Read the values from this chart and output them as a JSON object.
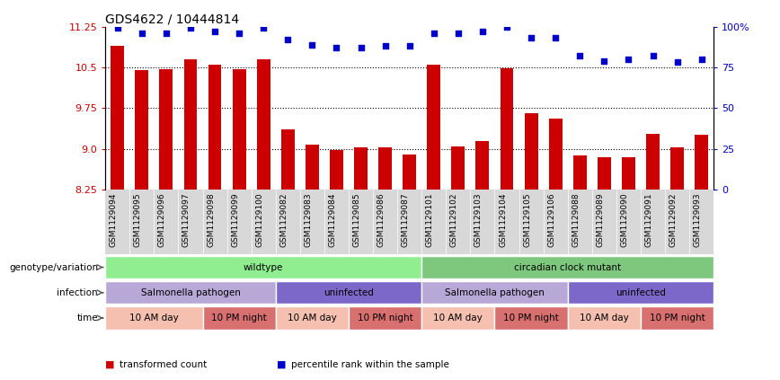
{
  "title": "GDS4622 / 10444814",
  "samples": [
    "GSM1129094",
    "GSM1129095",
    "GSM1129096",
    "GSM1129097",
    "GSM1129098",
    "GSM1129099",
    "GSM1129100",
    "GSM1129082",
    "GSM1129083",
    "GSM1129084",
    "GSM1129085",
    "GSM1129086",
    "GSM1129087",
    "GSM1129101",
    "GSM1129102",
    "GSM1129103",
    "GSM1129104",
    "GSM1129105",
    "GSM1129106",
    "GSM1129088",
    "GSM1129089",
    "GSM1129090",
    "GSM1129091",
    "GSM1129092",
    "GSM1129093"
  ],
  "bar_values": [
    10.9,
    10.45,
    10.47,
    10.65,
    10.55,
    10.46,
    10.65,
    9.35,
    9.07,
    8.97,
    9.02,
    9.02,
    8.9,
    10.55,
    9.05,
    9.15,
    10.48,
    9.65,
    9.55,
    8.87,
    8.85,
    8.85,
    9.28,
    9.02,
    9.25
  ],
  "percentile_values": [
    99,
    96,
    96,
    99,
    97,
    96,
    99,
    92,
    89,
    87,
    87,
    88,
    88,
    96,
    96,
    97,
    100,
    93,
    93,
    82,
    79,
    80,
    82,
    78,
    80
  ],
  "ylim_left": [
    8.25,
    11.25
  ],
  "ylim_right": [
    0,
    100
  ],
  "yticks_left": [
    8.25,
    9.0,
    9.75,
    10.5,
    11.25
  ],
  "yticks_right": [
    0,
    25,
    50,
    75,
    100
  ],
  "bar_color": "#CC0000",
  "dot_color": "#0000CC",
  "grid_yticks": [
    9.0,
    9.75,
    10.5
  ],
  "annotation_rows": [
    {
      "label": "genotype/variation",
      "segments": [
        {
          "text": "wildtype",
          "start": 0,
          "end": 13,
          "color": "#90EE90"
        },
        {
          "text": "circadian clock mutant",
          "start": 13,
          "end": 25,
          "color": "#7EC87E"
        }
      ]
    },
    {
      "label": "infection",
      "segments": [
        {
          "text": "Salmonella pathogen",
          "start": 0,
          "end": 7,
          "color": "#B8A8D8"
        },
        {
          "text": "uninfected",
          "start": 7,
          "end": 13,
          "color": "#7B68C8"
        },
        {
          "text": "Salmonella pathogen",
          "start": 13,
          "end": 19,
          "color": "#B8A8D8"
        },
        {
          "text": "uninfected",
          "start": 19,
          "end": 25,
          "color": "#7B68C8"
        }
      ]
    },
    {
      "label": "time",
      "segments": [
        {
          "text": "10 AM day",
          "start": 0,
          "end": 4,
          "color": "#F5C0B0"
        },
        {
          "text": "10 PM night",
          "start": 4,
          "end": 7,
          "color": "#D87070"
        },
        {
          "text": "10 AM day",
          "start": 7,
          "end": 10,
          "color": "#F5C0B0"
        },
        {
          "text": "10 PM night",
          "start": 10,
          "end": 13,
          "color": "#D87070"
        },
        {
          "text": "10 AM day",
          "start": 13,
          "end": 16,
          "color": "#F5C0B0"
        },
        {
          "text": "10 PM night",
          "start": 16,
          "end": 19,
          "color": "#D87070"
        },
        {
          "text": "10 AM day",
          "start": 19,
          "end": 22,
          "color": "#F5C0B0"
        },
        {
          "text": "10 PM night",
          "start": 22,
          "end": 25,
          "color": "#D87070"
        }
      ]
    }
  ],
  "legend_items": [
    {
      "color": "#CC0000",
      "label": "transformed count"
    },
    {
      "color": "#0000CC",
      "label": "percentile rank within the sample"
    }
  ],
  "fig_width": 8.68,
  "fig_height": 4.23,
  "fig_dpi": 100
}
